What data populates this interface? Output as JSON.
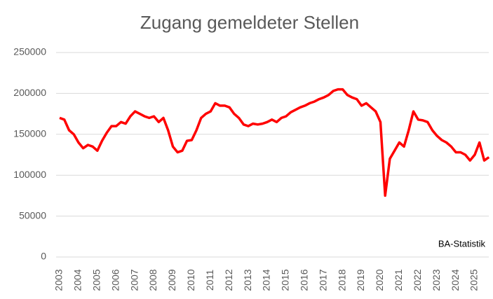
{
  "chart_data": {
    "type": "line",
    "title": "Zugang gemeldeter Stellen",
    "annotation": "BA-Statistik",
    "categories": [
      "2003",
      null,
      null,
      null,
      "2004",
      null,
      null,
      null,
      "2005",
      null,
      null,
      null,
      "2006",
      null,
      null,
      null,
      "2007",
      null,
      null,
      null,
      "2008",
      null,
      null,
      null,
      "2009",
      null,
      null,
      null,
      "2010",
      null,
      null,
      null,
      "2011",
      null,
      null,
      null,
      "2012",
      null,
      null,
      null,
      "2013",
      null,
      null,
      null,
      "2014",
      null,
      null,
      null,
      "2015",
      null,
      null,
      null,
      "2016",
      null,
      null,
      null,
      "2017",
      null,
      null,
      null,
      "2018",
      null,
      null,
      null,
      "2019",
      null,
      null,
      null,
      "2020",
      null,
      null,
      null,
      "2021",
      null,
      null,
      null,
      "2022",
      null,
      null,
      null,
      "2023",
      null,
      null,
      null,
      "2024",
      null,
      null,
      null,
      "2025",
      null,
      null,
      null
    ],
    "values": [
      170000,
      168000,
      155000,
      150000,
      140000,
      133000,
      137000,
      135000,
      130000,
      142000,
      152000,
      160000,
      160000,
      165000,
      163000,
      172000,
      178000,
      175000,
      172000,
      170000,
      172000,
      165000,
      170000,
      155000,
      135000,
      128000,
      130000,
      142000,
      143000,
      155000,
      170000,
      175000,
      178000,
      188000,
      185000,
      185000,
      183000,
      175000,
      170000,
      162000,
      160000,
      163000,
      162000,
      163000,
      165000,
      168000,
      165000,
      170000,
      172000,
      177000,
      180000,
      183000,
      185000,
      188000,
      190000,
      193000,
      195000,
      198000,
      203000,
      205000,
      205000,
      198000,
      195000,
      193000,
      185000,
      188000,
      183000,
      178000,
      165000,
      75000,
      120000,
      130000,
      140000,
      135000,
      155000,
      178000,
      168000,
      167000,
      165000,
      155000,
      148000,
      143000,
      140000,
      135000,
      128000,
      128000,
      125000,
      118000,
      125000,
      140000,
      118000,
      122000
    ],
    "color": "#ff0000",
    "ylim": [
      0,
      250000
    ],
    "yticks": [
      0,
      50000,
      100000,
      150000,
      200000,
      250000
    ],
    "grid": true
  }
}
